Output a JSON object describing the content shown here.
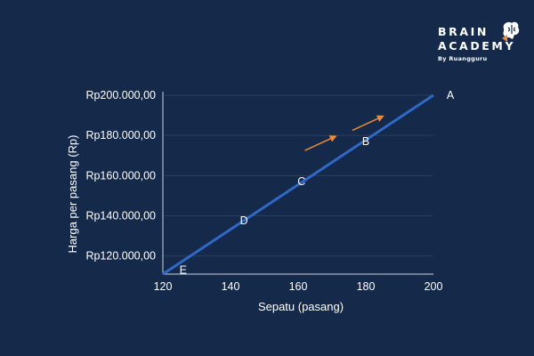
{
  "brand": {
    "line1": "BRAIN",
    "line2": "ACADEMY",
    "line3": "By Ruangguru",
    "icon": "brain-icon"
  },
  "colors": {
    "background": "#15294a",
    "line": "#2f68c6",
    "arrow": "#e88a3a",
    "grid": "#2a3f63"
  },
  "chart_data": {
    "type": "line",
    "title": "",
    "xlabel": "Sepatu (pasang)",
    "ylabel": "Harga per pasang (Rp)",
    "xlim": [
      120,
      200
    ],
    "ylim": [
      111000,
      200000
    ],
    "x_ticks": [
      {
        "value": 120,
        "label": "120"
      },
      {
        "value": 140,
        "label": "140"
      },
      {
        "value": 160,
        "label": "160"
      },
      {
        "value": 180,
        "label": "180"
      },
      {
        "value": 200,
        "label": "200"
      }
    ],
    "y_ticks": [
      {
        "value": 120000,
        "label": "Rp120.000,00"
      },
      {
        "value": 140000,
        "label": "Rp140.000,00"
      },
      {
        "value": 160000,
        "label": "Rp160.000,00"
      },
      {
        "value": 180000,
        "label": "Rp180.000,00"
      },
      {
        "value": 200000,
        "label": "Rp200.000,00"
      }
    ],
    "grid": true,
    "series": [
      {
        "points": [
          {
            "x": 120,
            "y": 111000
          },
          {
            "x": 200,
            "y": 200000
          }
        ]
      }
    ],
    "point_labels": [
      {
        "label": "A",
        "x": 205,
        "y": 200000
      },
      {
        "label": "B",
        "x": 180,
        "y": 177000
      },
      {
        "label": "C",
        "x": 161,
        "y": 157000
      },
      {
        "label": "D",
        "x": 144,
        "y": 137500
      },
      {
        "label": "E",
        "x": 126,
        "y": 113000
      }
    ],
    "arrows": [
      {
        "from": {
          "x": 162,
          "y": 172500
        },
        "to": {
          "x": 171,
          "y": 179500
        }
      },
      {
        "from": {
          "x": 176,
          "y": 182500
        },
        "to": {
          "x": 185,
          "y": 189500
        }
      }
    ]
  }
}
